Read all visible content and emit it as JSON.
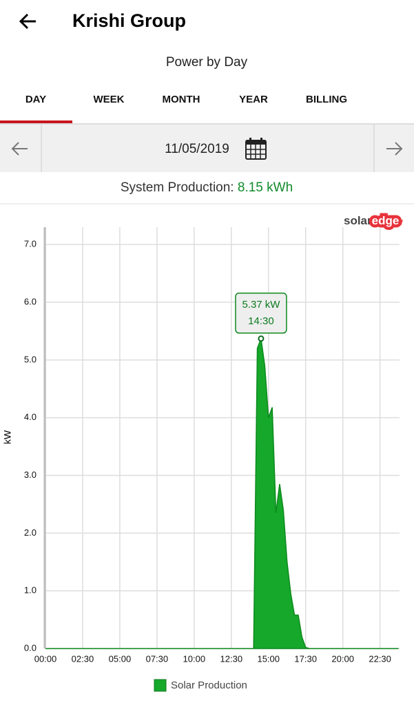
{
  "header": {
    "title": "Krishi Group",
    "subtitle": "Power by Day"
  },
  "tabs": [
    "DAY",
    "WEEK",
    "MONTH",
    "YEAR",
    "BILLING"
  ],
  "date": "11/05/2019",
  "production": {
    "label": "System Production:",
    "value": "8.15 kWh"
  },
  "brand": [
    "solar",
    "edge"
  ],
  "chart_data": {
    "type": "area",
    "ylabel": "kW",
    "x": [
      0,
      14,
      14.25,
      14.5,
      14.75,
      15,
      15.25,
      15.5,
      15.75,
      16,
      16.25,
      16.5,
      16.75,
      17,
      17.25,
      17.5,
      17.75,
      23.75
    ],
    "series": [
      {
        "name": "Solar Production",
        "color": "#16a82a",
        "values": [
          0,
          0,
          5.2,
          5.37,
          4.9,
          4.0,
          4.18,
          2.35,
          2.85,
          2.4,
          1.5,
          0.95,
          0.58,
          0.58,
          0.2,
          0.02,
          0,
          0
        ]
      }
    ],
    "tooltip": {
      "value_label": "5.37 kW",
      "x_label": "14:30"
    },
    "xlim": [
      0,
      24
    ],
    "xticks": [
      {
        "value": 0,
        "label": "00:00"
      },
      {
        "value": 2.5,
        "label": "02:30"
      },
      {
        "value": 5,
        "label": "05:00"
      },
      {
        "value": 7.5,
        "label": "07:30"
      },
      {
        "value": 10,
        "label": "10:00"
      },
      {
        "value": 12.5,
        "label": "12:30"
      },
      {
        "value": 15,
        "label": "15:00"
      },
      {
        "value": 17.5,
        "label": "17:30"
      },
      {
        "value": 20,
        "label": "20:00"
      },
      {
        "value": 22.5,
        "label": "22:30"
      }
    ],
    "ylim": [
      0,
      7.3
    ],
    "yticks": [
      {
        "value": 0,
        "label": "0.0"
      },
      {
        "value": 1,
        "label": "1.0"
      },
      {
        "value": 2,
        "label": "2.0"
      },
      {
        "value": 3,
        "label": "3.0"
      },
      {
        "value": 4,
        "label": "4.0"
      },
      {
        "value": 5,
        "label": "5.0"
      },
      {
        "value": 6,
        "label": "6.0"
      },
      {
        "value": 7,
        "label": "7.0"
      }
    ],
    "grid": true
  }
}
